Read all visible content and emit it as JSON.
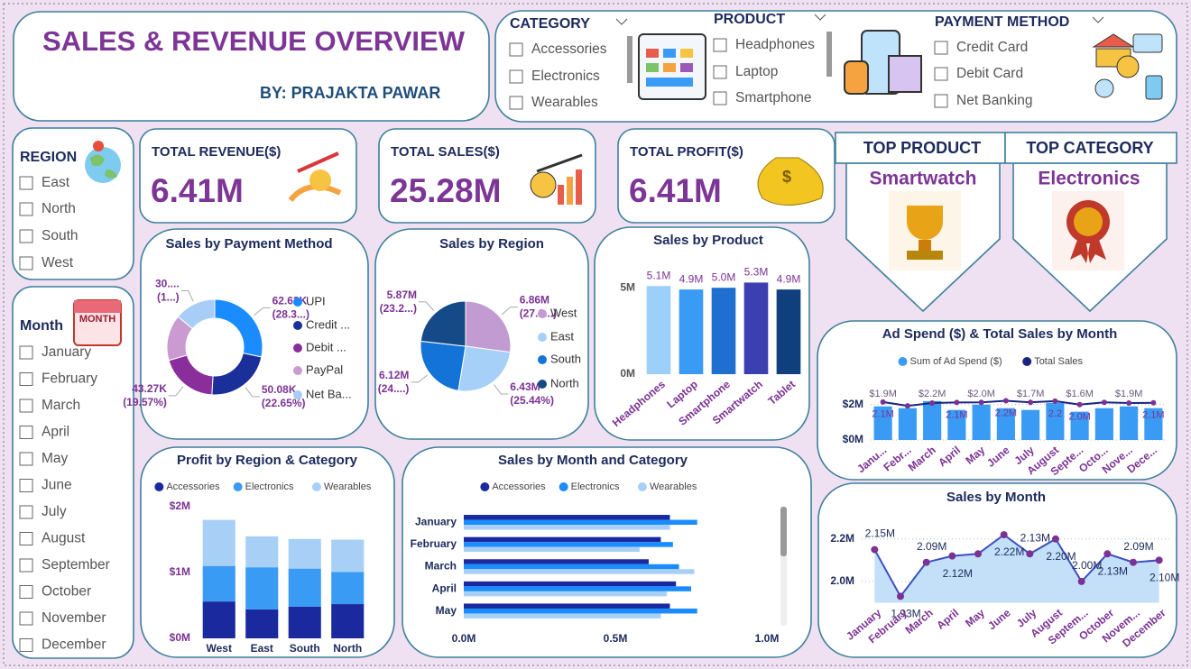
{
  "header": {
    "title": "SALES & REVENUE OVERVIEW",
    "byline": "BY: PRAJAKTA PAWAR"
  },
  "filters": {
    "category": {
      "title": "CATEGORY",
      "options": [
        "Accessories",
        "Electronics",
        "Wearables"
      ]
    },
    "product": {
      "title": "PRODUCT",
      "options": [
        "Headphones",
        "Laptop",
        "Smartphone"
      ]
    },
    "payment_method": {
      "title": "PAYMENT METHOD",
      "options": [
        "Credit Card",
        "Debit Card",
        "Net Banking"
      ]
    },
    "region": {
      "title": "REGION",
      "options": [
        "East",
        "North",
        "South",
        "West"
      ]
    },
    "month": {
      "title": "Month",
      "options": [
        "January",
        "February",
        "March",
        "April",
        "May",
        "June",
        "July",
        "August",
        "September",
        "October",
        "November",
        "December"
      ]
    }
  },
  "kpis": [
    {
      "label": "TOTAL REVENUE($)",
      "value": "6.41M"
    },
    {
      "label": "TOTAL SALES($)",
      "value": "25.28M"
    },
    {
      "label": "TOTAL PROFIT($)",
      "value": "6.41M"
    }
  ],
  "highlights": [
    {
      "label": "TOP PRODUCT",
      "value": "Smartwatch"
    },
    {
      "label": "TOP CATEGORY",
      "value": "Electronics"
    }
  ],
  "chart_data": [
    {
      "type": "donut",
      "title": "Sales by Payment Method",
      "categories": [
        "UPI",
        "Credit ...",
        "Debit ...",
        "PayPal",
        "Net Ba..."
      ],
      "values": [
        62.63,
        50.08,
        43.27,
        34.3,
        30.9
      ],
      "value_labels": [
        "62.63K",
        "50.08K",
        "43.27K",
        null,
        "30...."
      ],
      "percent_labels": [
        "(28.3...)",
        "(22.65%)",
        "(19.57%)",
        null,
        "(1...)"
      ],
      "colors": [
        "#1a8cff",
        "#1b2f9b",
        "#8a2e9c",
        "#c99bd0",
        "#a8cdf7"
      ]
    },
    {
      "type": "pie",
      "title": "Sales by Region",
      "categories": [
        "West",
        "East",
        "South",
        "North"
      ],
      "values": [
        6.86,
        6.43,
        6.12,
        5.87
      ],
      "value_labels": [
        "6.86M",
        "6.43M",
        "6.12M",
        "5.87M"
      ],
      "percent_labels": [
        "(27.1...)",
        "(25.44%)",
        "(24....)",
        "(23.2...)"
      ],
      "colors": [
        "#c39bd3",
        "#a6d0f7",
        "#1473d6",
        "#134a87"
      ]
    },
    {
      "type": "bar",
      "title": "Sales by Product",
      "categories": [
        "Headphones",
        "Laptop",
        "Smartphone",
        "Smartwatch",
        "Tablet"
      ],
      "values": [
        5.1,
        4.9,
        5.0,
        5.3,
        4.9
      ],
      "value_labels": [
        "5.1M",
        "4.9M",
        "5.0M",
        "5.3M",
        "4.9M"
      ],
      "colors": [
        "#9ccffa",
        "#3a9bf4",
        "#1e6fd0",
        "#3b3fb0",
        "#0f3f7d"
      ],
      "ylim": [
        0,
        6
      ],
      "yticks": [
        {
          "value": 0,
          "label": "0M"
        },
        {
          "value": 5,
          "label": "5M"
        }
      ],
      "grid": false
    },
    {
      "type": "combo",
      "title": "Ad Spend ($) & Total Sales by Month",
      "categories": [
        "Janu...",
        "Febr...",
        "March",
        "April",
        "May",
        "June",
        "July",
        "August",
        "Septe...",
        "Octo...",
        "Nove...",
        "Dece..."
      ],
      "series": [
        {
          "name": "Sum of Ad Spend ($)",
          "type": "bar",
          "color": "#3a9bf4",
          "values": [
            1.9,
            1.8,
            2.2,
            1.7,
            2.0,
            1.8,
            1.7,
            2.1,
            1.6,
            1.8,
            1.9,
            1.8
          ],
          "value_labels": [
            "$1.9M",
            null,
            "$2.2M",
            null,
            "$2.0M",
            null,
            "$1.7M",
            null,
            "$1.6M",
            null,
            "$1.9M",
            null
          ]
        },
        {
          "name": "Total Sales",
          "type": "line",
          "color": "#1a237e",
          "marker_color": "#7b3294",
          "values": [
            2.15,
            1.93,
            2.09,
            2.12,
            2.13,
            2.22,
            2.13,
            2.2,
            2.0,
            2.13,
            2.09,
            2.1
          ],
          "value_labels": [
            "2.1M",
            null,
            null,
            "2.1M",
            null,
            "2.2M",
            null,
            "2.2",
            "2.0M",
            null,
            null,
            "2.1M"
          ]
        }
      ],
      "ylim": [
        0,
        2.6
      ],
      "yticks": [
        {
          "value": 0,
          "label": "$0M"
        },
        {
          "value": 2,
          "label": "$2M"
        }
      ],
      "grid": true
    },
    {
      "type": "stacked_bar",
      "title": "Profit by Region & Category",
      "categories": [
        "West",
        "East",
        "South",
        "North"
      ],
      "series": [
        {
          "name": "Accessories",
          "color": "#1a2a9e",
          "values": [
            0.56,
            0.44,
            0.48,
            0.52
          ]
        },
        {
          "name": "Electronics",
          "color": "#3a9bf4",
          "values": [
            0.54,
            0.64,
            0.58,
            0.49
          ]
        },
        {
          "name": "Wearables",
          "color": "#a8d0f7",
          "values": [
            0.7,
            0.47,
            0.45,
            0.49
          ]
        }
      ],
      "ylim": [
        0,
        2
      ],
      "yticks": [
        {
          "value": 0,
          "label": "$0M"
        },
        {
          "value": 1,
          "label": "$1M"
        },
        {
          "value": 2,
          "label": "$2M"
        }
      ],
      "grid": false
    },
    {
      "type": "hbar",
      "title": "Sales by Month and Category",
      "categories": [
        "January",
        "February",
        "March",
        "April",
        "May"
      ],
      "series": [
        {
          "name": "Accessories",
          "color": "#1a2a9e",
          "values": [
            0.68,
            0.65,
            0.61,
            0.7,
            0.68
          ]
        },
        {
          "name": "Electronics",
          "color": "#1a8cff",
          "values": [
            0.77,
            0.69,
            0.71,
            0.75,
            0.77
          ]
        },
        {
          "name": "Wearables",
          "color": "#a8d0f7",
          "values": [
            0.68,
            0.58,
            0.76,
            0.67,
            0.65
          ]
        }
      ],
      "xlim": [
        0,
        1.0
      ],
      "xticks": [
        {
          "value": 0,
          "label": "0.0M"
        },
        {
          "value": 0.5,
          "label": "0.5M"
        },
        {
          "value": 1.0,
          "label": "1.0M"
        }
      ],
      "grid": false
    },
    {
      "type": "area",
      "title": "Sales by Month",
      "categories": [
        "January",
        "February",
        "March",
        "April",
        "May",
        "June",
        "July",
        "August",
        "Septem...",
        "October",
        "Novem...",
        "December"
      ],
      "values": [
        2.15,
        1.93,
        2.09,
        2.12,
        2.13,
        2.22,
        2.13,
        2.2,
        2.0,
        2.13,
        2.09,
        2.1
      ],
      "value_labels": [
        "2.15M",
        "1.93M",
        "2.09M",
        "2.12M",
        null,
        "2.22M",
        "2.13M",
        "2.20M",
        "2.00M",
        "2.13M",
        "2.09M",
        "2.10M"
      ],
      "line_color": "#3b4fc4",
      "marker_color": "#7b3294",
      "fill": "#c4e0f9",
      "ylim": [
        1.9,
        2.25
      ],
      "yticks": [
        {
          "value": 2.0,
          "label": "2.0M"
        },
        {
          "value": 2.2,
          "label": "2.2M"
        }
      ],
      "grid": true
    }
  ]
}
